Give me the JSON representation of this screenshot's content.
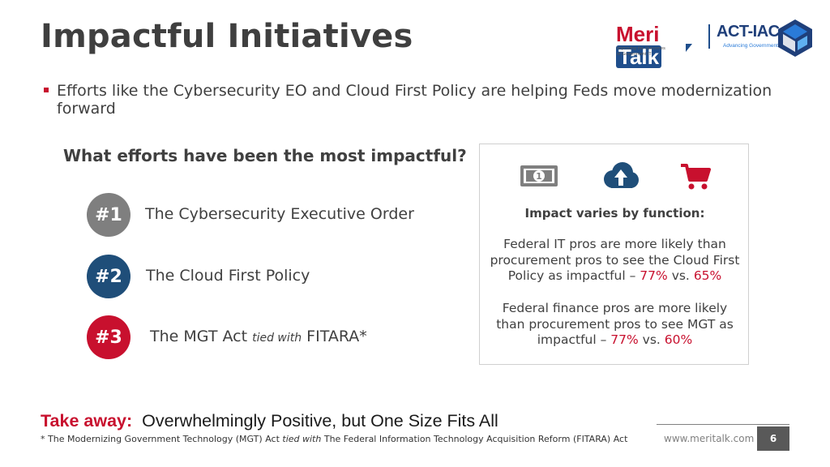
{
  "slide": {
    "title": "Impactful Initiatives",
    "bullet": "Efforts like the Cybersecurity EO and Cloud First Policy are helping Feds move modernization forward",
    "question": "What efforts have been the most impactful?",
    "ranks": [
      {
        "badge": "#1",
        "label": "The Cybersecurity Executive Order"
      },
      {
        "badge": "#2",
        "label": "The Cloud First Policy"
      },
      {
        "badge": "#3",
        "label_main": "The MGT Act",
        "label_italic": "tied with",
        "label_end": "FITARA*"
      }
    ],
    "panel": {
      "icons": [
        "money-icon",
        "cloud-upload-icon",
        "shopping-cart-icon"
      ],
      "heading": "Impact varies by function:",
      "para1": {
        "text": "Federal IT pros are more likely than procurement pros to see the Cloud First Policy as impactful –",
        "value_a": "77%",
        "sep": "vs.",
        "value_b": "65%"
      },
      "para2": {
        "text": "Federal finance pros are more likely than procurement pros to see MGT as impactful –",
        "value_a": "77%",
        "sep": "vs.",
        "value_b": "60%"
      }
    },
    "takeaway": {
      "label": "Take away:",
      "text": "Overwhelmingly Positive, but One Size Fits All"
    },
    "footnote": {
      "part1": "* The Modernizing Government Technology (MGT) Act",
      "italic": "tied with",
      "part2": "The Federal Information Technology Acquisition Reform (FITARA) Act"
    },
    "footer": {
      "url": "www.meritalk.com",
      "page": "6"
    }
  },
  "logos": {
    "meritalk": {
      "meri": "Meri",
      "talk": "Talk",
      "tagline_1": "Improving the Outcomes",
      "tagline_2": "of Government IT"
    },
    "actiac": {
      "name": "ACT-IAC",
      "tagline": "Advancing Government"
    }
  },
  "colors": {
    "accent_red": "#c8102e",
    "navy": "#1f4e79",
    "gray_badge": "#7f7f7f",
    "text": "#404040"
  }
}
